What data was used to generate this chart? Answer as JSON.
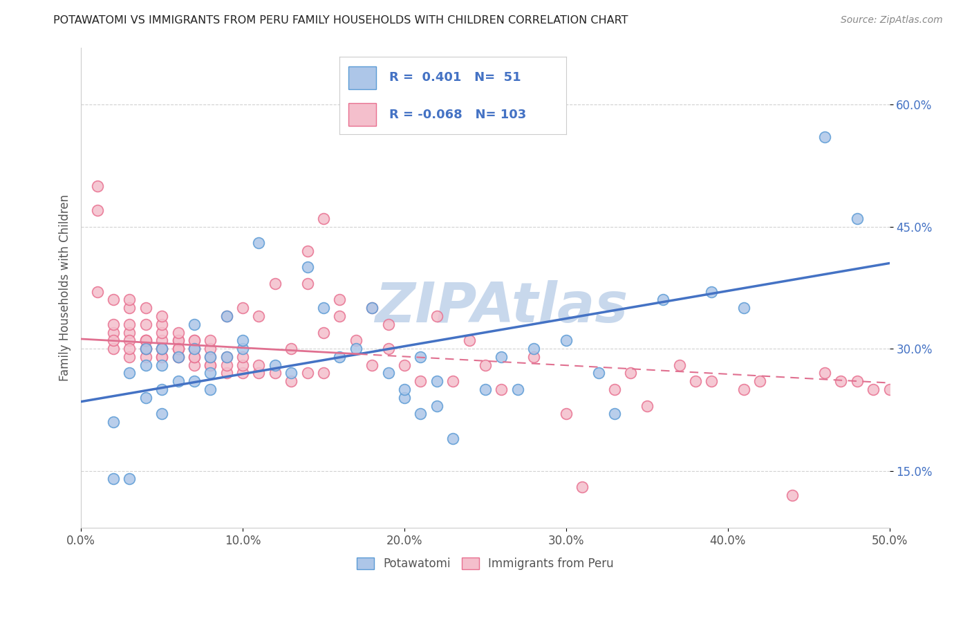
{
  "title": "POTAWATOMI VS IMMIGRANTS FROM PERU FAMILY HOUSEHOLDS WITH CHILDREN CORRELATION CHART",
  "source": "Source: ZipAtlas.com",
  "ylabel": "Family Households with Children",
  "xlim": [
    0.0,
    0.5
  ],
  "ylim": [
    0.08,
    0.67
  ],
  "xticks": [
    0.0,
    0.1,
    0.2,
    0.3,
    0.4,
    0.5
  ],
  "yticks": [
    0.15,
    0.3,
    0.45,
    0.6
  ],
  "xticklabels": [
    "0.0%",
    "10.0%",
    "20.0%",
    "30.0%",
    "40.0%",
    "50.0%"
  ],
  "yticklabels": [
    "15.0%",
    "30.0%",
    "45.0%",
    "60.0%"
  ],
  "blue_R": 0.401,
  "blue_N": 51,
  "pink_R": -0.068,
  "pink_N": 103,
  "blue_color": "#adc6e8",
  "blue_edge_color": "#5b9bd5",
  "blue_line_color": "#4472c4",
  "pink_color": "#f4bfcc",
  "pink_edge_color": "#e87090",
  "pink_line_color": "#e07090",
  "watermark": "ZIPAtlas",
  "watermark_color": "#c8d8ec",
  "blue_line_x0": 0.0,
  "blue_line_y0": 0.235,
  "blue_line_x1": 0.5,
  "blue_line_y1": 0.405,
  "pink_line_x0": 0.0,
  "pink_line_y0": 0.312,
  "pink_line_x1": 0.5,
  "pink_line_y1": 0.258,
  "blue_scatter_x": [
    0.02,
    0.02,
    0.03,
    0.03,
    0.04,
    0.04,
    0.04,
    0.05,
    0.05,
    0.05,
    0.05,
    0.06,
    0.06,
    0.07,
    0.07,
    0.07,
    0.08,
    0.08,
    0.08,
    0.09,
    0.09,
    0.1,
    0.1,
    0.11,
    0.12,
    0.13,
    0.14,
    0.15,
    0.16,
    0.17,
    0.18,
    0.19,
    0.2,
    0.2,
    0.21,
    0.21,
    0.22,
    0.22,
    0.23,
    0.25,
    0.26,
    0.27,
    0.28,
    0.3,
    0.32,
    0.33,
    0.36,
    0.39,
    0.41,
    0.46,
    0.48
  ],
  "blue_scatter_y": [
    0.21,
    0.14,
    0.27,
    0.14,
    0.28,
    0.3,
    0.24,
    0.28,
    0.25,
    0.3,
    0.22,
    0.29,
    0.26,
    0.3,
    0.33,
    0.26,
    0.29,
    0.27,
    0.25,
    0.29,
    0.34,
    0.3,
    0.31,
    0.43,
    0.28,
    0.27,
    0.4,
    0.35,
    0.29,
    0.3,
    0.35,
    0.27,
    0.24,
    0.25,
    0.22,
    0.29,
    0.26,
    0.23,
    0.19,
    0.25,
    0.29,
    0.25,
    0.3,
    0.31,
    0.27,
    0.22,
    0.36,
    0.37,
    0.35,
    0.56,
    0.46
  ],
  "pink_scatter_x": [
    0.01,
    0.01,
    0.01,
    0.02,
    0.02,
    0.02,
    0.02,
    0.02,
    0.03,
    0.03,
    0.03,
    0.03,
    0.03,
    0.03,
    0.03,
    0.04,
    0.04,
    0.04,
    0.04,
    0.04,
    0.04,
    0.04,
    0.04,
    0.05,
    0.05,
    0.05,
    0.05,
    0.05,
    0.05,
    0.05,
    0.05,
    0.06,
    0.06,
    0.06,
    0.06,
    0.06,
    0.06,
    0.06,
    0.06,
    0.07,
    0.07,
    0.07,
    0.07,
    0.07,
    0.07,
    0.07,
    0.08,
    0.08,
    0.08,
    0.08,
    0.08,
    0.09,
    0.09,
    0.09,
    0.09,
    0.1,
    0.1,
    0.1,
    0.1,
    0.11,
    0.11,
    0.11,
    0.12,
    0.12,
    0.13,
    0.13,
    0.14,
    0.14,
    0.14,
    0.15,
    0.15,
    0.15,
    0.16,
    0.16,
    0.17,
    0.18,
    0.18,
    0.19,
    0.19,
    0.2,
    0.21,
    0.22,
    0.23,
    0.24,
    0.25,
    0.26,
    0.28,
    0.3,
    0.31,
    0.33,
    0.34,
    0.35,
    0.37,
    0.38,
    0.39,
    0.41,
    0.42,
    0.44,
    0.46,
    0.47,
    0.48,
    0.49,
    0.5
  ],
  "pink_scatter_y": [
    0.47,
    0.37,
    0.5,
    0.32,
    0.3,
    0.33,
    0.36,
    0.31,
    0.29,
    0.32,
    0.33,
    0.35,
    0.36,
    0.31,
    0.3,
    0.29,
    0.3,
    0.3,
    0.31,
    0.31,
    0.33,
    0.35,
    0.31,
    0.29,
    0.29,
    0.3,
    0.31,
    0.32,
    0.33,
    0.34,
    0.3,
    0.29,
    0.29,
    0.3,
    0.3,
    0.31,
    0.31,
    0.32,
    0.3,
    0.28,
    0.29,
    0.3,
    0.3,
    0.31,
    0.31,
    0.29,
    0.28,
    0.28,
    0.29,
    0.3,
    0.31,
    0.27,
    0.28,
    0.29,
    0.34,
    0.27,
    0.28,
    0.29,
    0.35,
    0.27,
    0.28,
    0.34,
    0.27,
    0.38,
    0.26,
    0.3,
    0.27,
    0.38,
    0.42,
    0.27,
    0.32,
    0.46,
    0.34,
    0.36,
    0.31,
    0.35,
    0.28,
    0.3,
    0.33,
    0.28,
    0.26,
    0.34,
    0.26,
    0.31,
    0.28,
    0.25,
    0.29,
    0.22,
    0.13,
    0.25,
    0.27,
    0.23,
    0.28,
    0.26,
    0.26,
    0.25,
    0.26,
    0.12,
    0.27,
    0.26,
    0.26,
    0.25,
    0.25
  ]
}
